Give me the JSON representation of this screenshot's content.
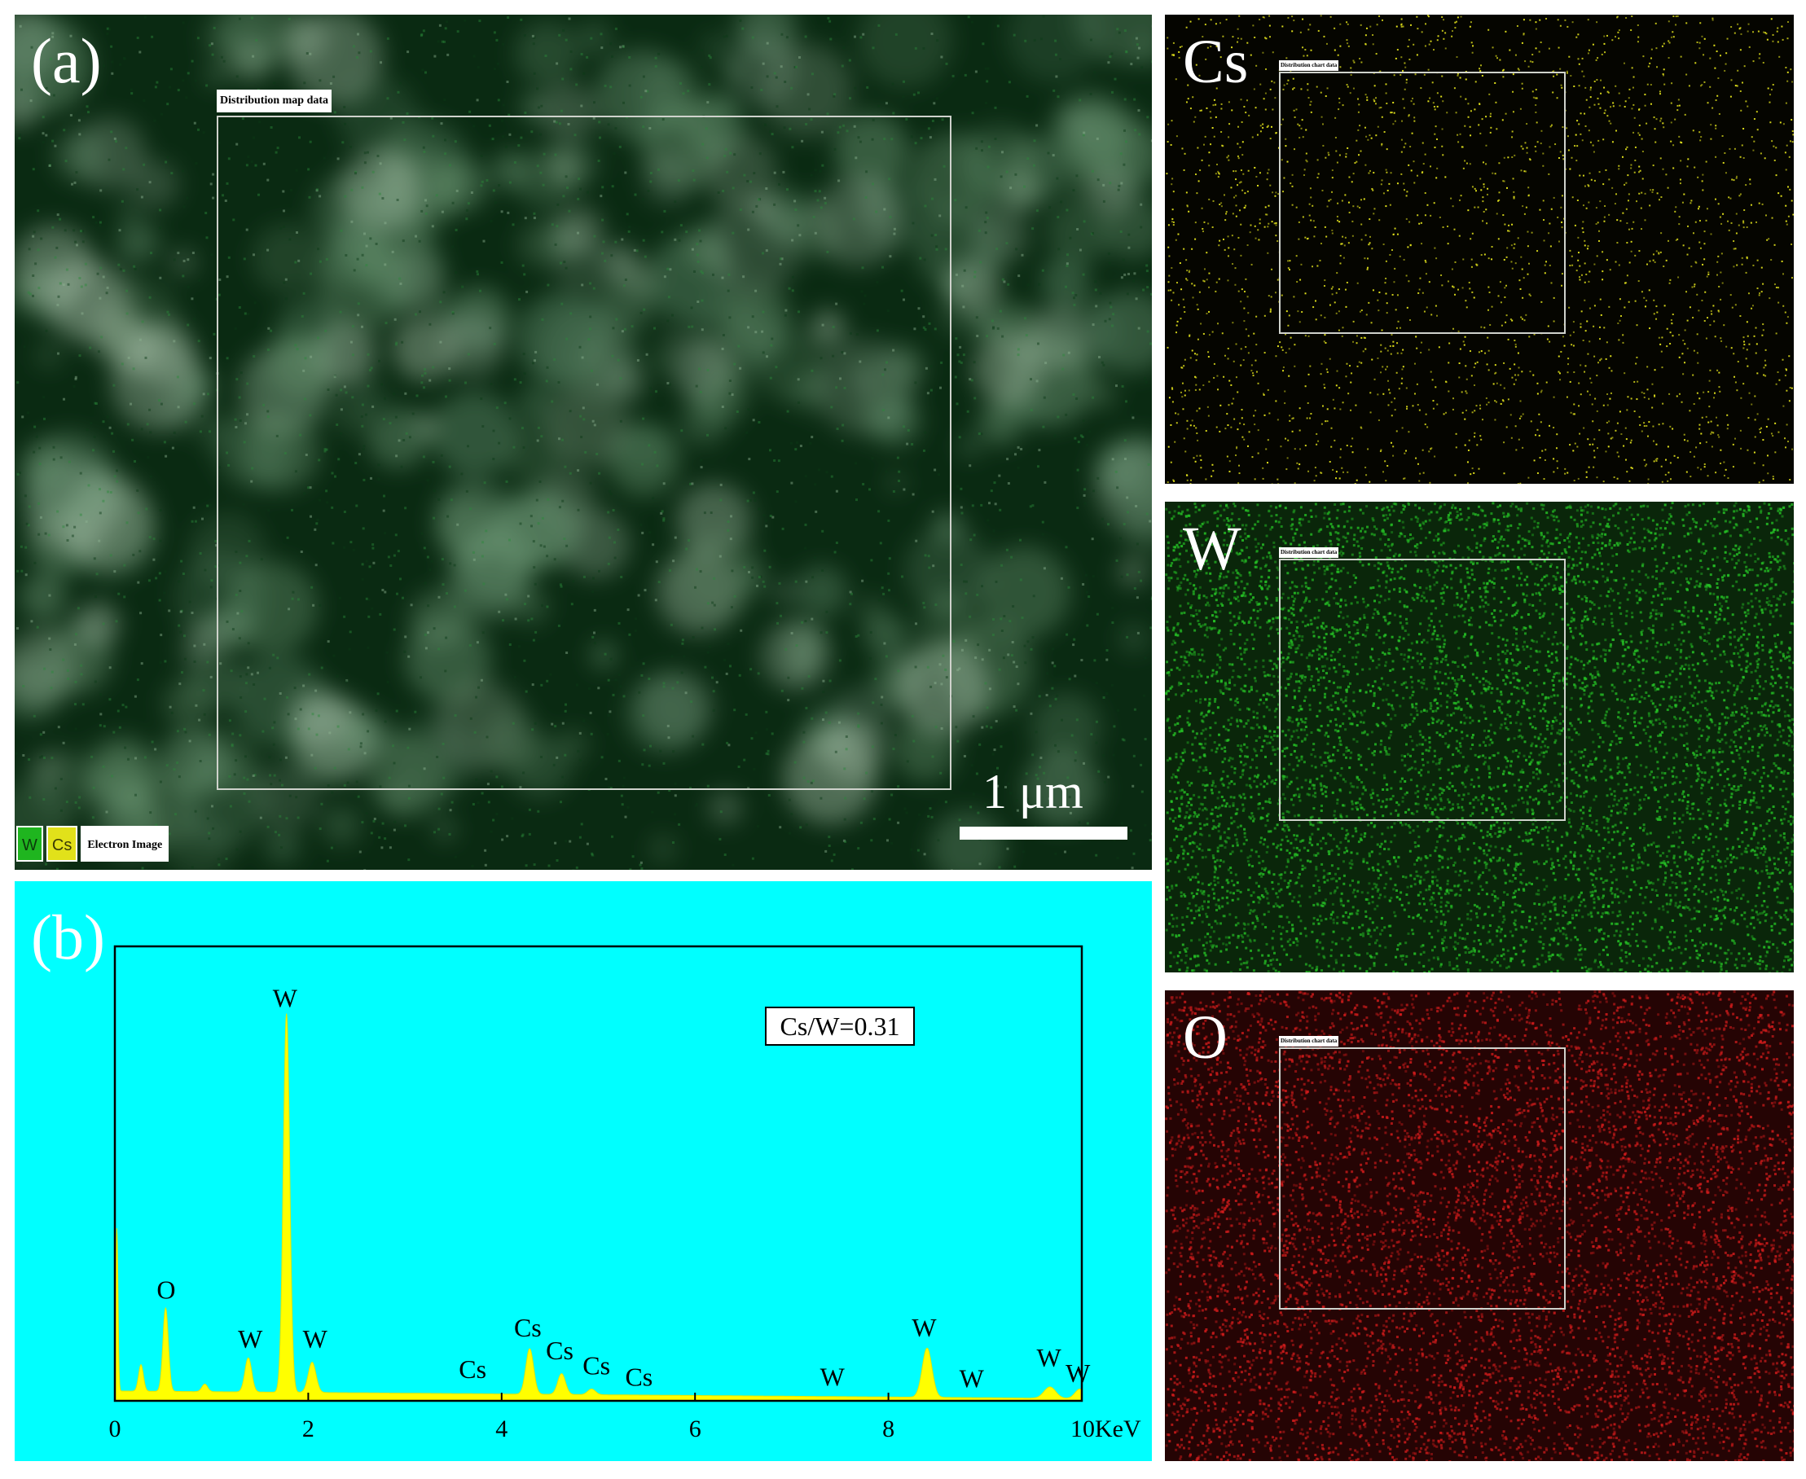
{
  "panel_a": {
    "label": "(a)",
    "region_tag": "Distribution map data",
    "scale_label": "1 μm",
    "legend": [
      "W",
      "Cs",
      "Electron Image"
    ],
    "colors": {
      "base": "#0a2a12",
      "W": "#1fb51f",
      "Cs": "#e1e11a"
    }
  },
  "maps": [
    {
      "element": "Cs",
      "region_tag": "Distribution chart data",
      "color": "#e3e31c",
      "background": "#050500",
      "density": "sparse"
    },
    {
      "element": "W",
      "region_tag": "Distribution chart data",
      "color": "#26c526",
      "background": "#0a260a",
      "density": "dense"
    },
    {
      "element": "O",
      "region_tag": "Distribution chart data",
      "color": "#d41c1c",
      "background": "#250404",
      "density": "dense"
    }
  ],
  "panel_b": {
    "label": "(b)",
    "ratio_label": "Cs/W=0.31",
    "background": "#00ffff",
    "fill_color": "#ffff00"
  },
  "chart_data": {
    "type": "area",
    "title": "",
    "xlabel": "KeV",
    "ylabel": "",
    "xlim": [
      0,
      10
    ],
    "ylim": [
      0,
      1.2
    ],
    "x_ticks": [
      0,
      2,
      4,
      6,
      8,
      10
    ],
    "x_tick_labels": [
      "0",
      "2",
      "4",
      "6",
      "8",
      "10KeV"
    ],
    "grid": false,
    "baseline": 0.02,
    "peaks": [
      {
        "x": 0.02,
        "height": 0.43,
        "width": 0.012
      },
      {
        "x": 0.27,
        "height": 0.07,
        "width": 0.025
      },
      {
        "x": 0.525,
        "height": 0.22,
        "width": 0.028
      },
      {
        "x": 0.93,
        "height": 0.02,
        "width": 0.03
      },
      {
        "x": 1.38,
        "height": 0.09,
        "width": 0.035
      },
      {
        "x": 1.775,
        "height": 1.0,
        "width": 0.033
      },
      {
        "x": 2.04,
        "height": 0.08,
        "width": 0.04
      },
      {
        "x": 4.29,
        "height": 0.12,
        "width": 0.04
      },
      {
        "x": 4.62,
        "height": 0.055,
        "width": 0.04
      },
      {
        "x": 4.93,
        "height": 0.015,
        "width": 0.04
      },
      {
        "x": 8.4,
        "height": 0.13,
        "width": 0.05
      },
      {
        "x": 9.67,
        "height": 0.03,
        "width": 0.06
      },
      {
        "x": 9.98,
        "height": 0.025,
        "width": 0.05
      }
    ],
    "annotations": [
      {
        "text": "O",
        "x": 0.53,
        "y": 0.27
      },
      {
        "text": "W",
        "x": 1.4,
        "y": 0.14
      },
      {
        "text": "W",
        "x": 1.76,
        "y": 1.04
      },
      {
        "text": "W",
        "x": 2.07,
        "y": 0.14
      },
      {
        "text": "Cs",
        "x": 3.7,
        "y": 0.06
      },
      {
        "text": "Cs",
        "x": 4.27,
        "y": 0.17
      },
      {
        "text": "Cs",
        "x": 4.6,
        "y": 0.11
      },
      {
        "text": "Cs",
        "x": 4.98,
        "y": 0.07
      },
      {
        "text": "Cs",
        "x": 5.42,
        "y": 0.04
      },
      {
        "text": "W",
        "x": 7.42,
        "y": 0.04
      },
      {
        "text": "W",
        "x": 8.37,
        "y": 0.17
      },
      {
        "text": "W",
        "x": 8.86,
        "y": 0.035
      },
      {
        "text": "W",
        "x": 9.66,
        "y": 0.09
      },
      {
        "text": "W",
        "x": 9.96,
        "y": 0.05
      }
    ]
  }
}
